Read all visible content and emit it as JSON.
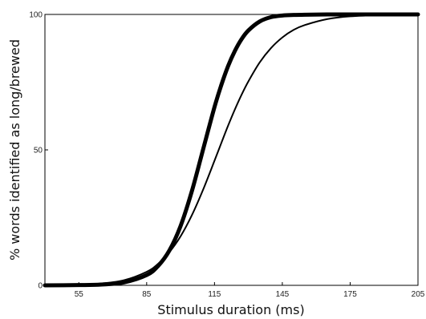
{
  "chart_data": {
    "type": "line",
    "title": "",
    "xlabel": "Stimulus duration (ms)",
    "ylabel": "% words identified as long/brewed",
    "xlim": [
      40,
      205
    ],
    "ylim": [
      0,
      100
    ],
    "xticks": [
      55,
      85,
      115,
      145,
      175,
      205
    ],
    "yticks": [
      0,
      50,
      100
    ],
    "grid": false,
    "legend": "none",
    "series": [
      {
        "style": "thick",
        "color": "#000000",
        "x": [
          40,
          55,
          65,
          75,
          85,
          90,
          95,
          100,
          105,
          110,
          115,
          118,
          121,
          124,
          127,
          130,
          135,
          140,
          145,
          150,
          155,
          165,
          175,
          190,
          205
        ],
        "y": [
          0,
          0.1,
          0.3,
          1.1,
          3.8,
          7.1,
          12.8,
          21.9,
          34.8,
          50.3,
          65.8,
          73.9,
          80.9,
          86.5,
          90.9,
          94.1,
          97.4,
          99.0,
          99.6,
          99.8,
          99.9,
          100,
          100,
          100,
          100
        ]
      },
      {
        "style": "thin",
        "color": "#000000",
        "x": [
          40,
          55,
          65,
          75,
          85,
          90,
          95,
          100,
          105,
          110,
          115,
          118,
          121,
          124,
          127,
          130,
          135,
          140,
          145,
          150,
          155,
          165,
          175,
          190,
          205
        ],
        "y": [
          0,
          0.2,
          0.7,
          1.9,
          5.0,
          7.9,
          12.2,
          18.1,
          25.9,
          35.4,
          46.0,
          52.5,
          58.9,
          64.9,
          70.4,
          75.3,
          82.3,
          87.6,
          91.5,
          94.3,
          96.1,
          98.3,
          99.3,
          99.8,
          100
        ]
      }
    ]
  }
}
